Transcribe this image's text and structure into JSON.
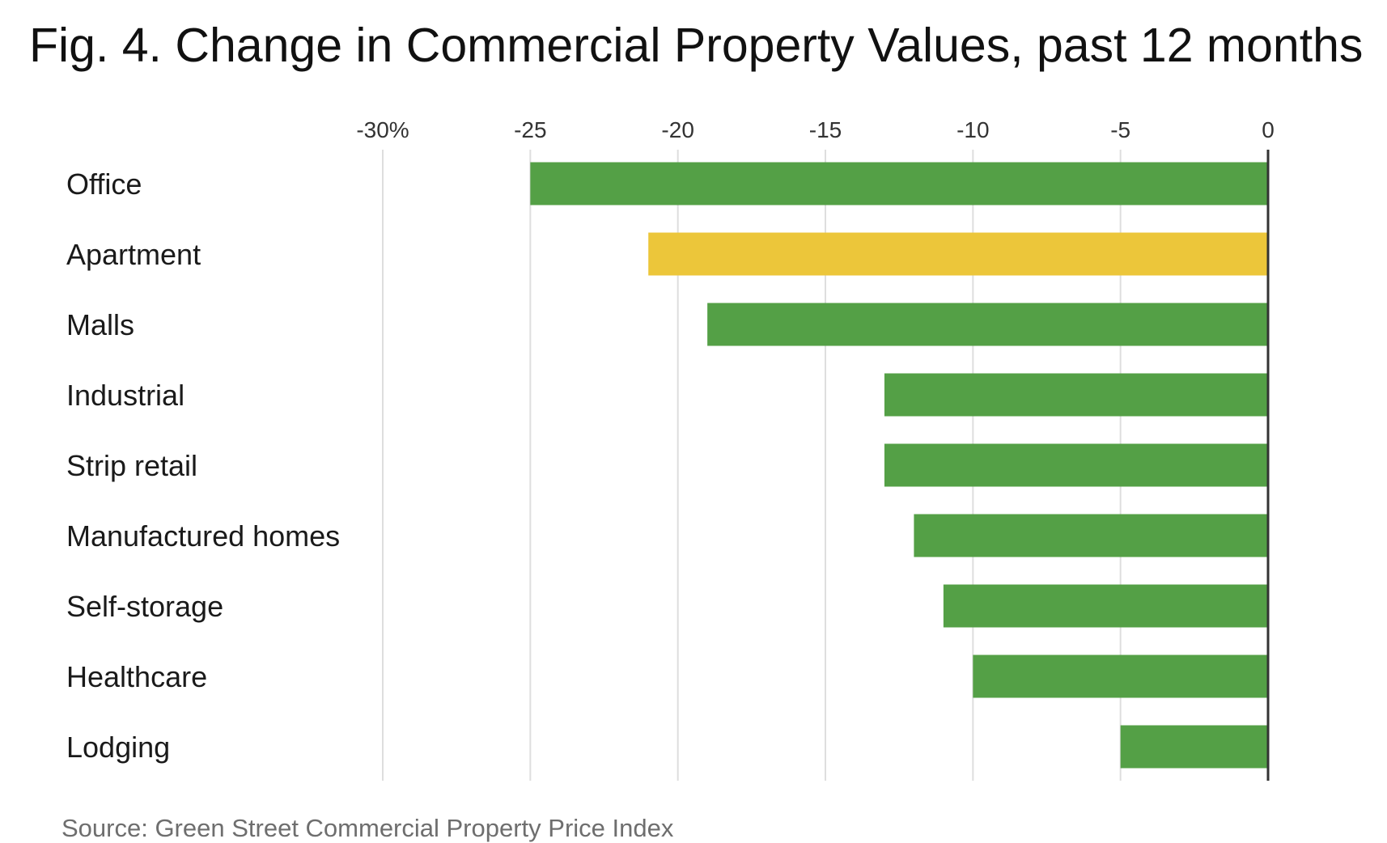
{
  "chart_data": {
    "type": "bar",
    "orientation": "horizontal",
    "title": "Fig. 4. Change in Commercial Property Values, past 12 months",
    "source": "Source: Green Street Commercial Property Price Index",
    "categories": [
      "Office",
      "Apartment",
      "Malls",
      "Industrial",
      "Strip retail",
      "Manufactured homes",
      "Self-storage",
      "Healthcare",
      "Lodging"
    ],
    "values": [
      -25,
      -21,
      -19,
      -13,
      -13,
      -12,
      -11,
      -10,
      -5
    ],
    "value_unit": "%",
    "xlim": [
      -30,
      0
    ],
    "x_ticks": [
      -30,
      -25,
      -20,
      -15,
      -10,
      -5,
      0
    ],
    "x_tick_labels": [
      "-30%",
      "-25",
      "-20",
      "-15",
      "-10",
      "-5",
      "0"
    ],
    "x_axis_position": "top",
    "grid": true,
    "colors": {
      "default": "#54a046",
      "highlight": "#ecc63a",
      "grid": "#dedede",
      "zero_line": "#333333"
    },
    "highlight_categories": [
      "Apartment"
    ]
  }
}
